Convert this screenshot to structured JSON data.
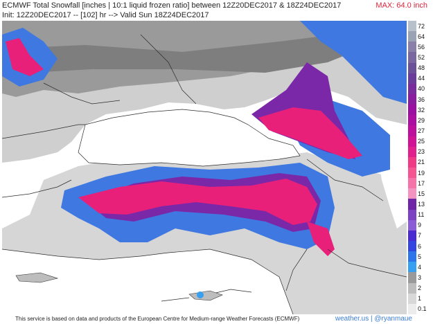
{
  "header": {
    "line1": "ECMWF Total Snowfall [inches | 10:1 liquid frozen ratio] between 12Z20DEC2017 & 18Z24DEC2017",
    "line2": "Init: 12Z20DEC2017 -- [102] hr --> Valid Sun 18Z24DEC2017",
    "max_label": "MAX: 64.0 inch"
  },
  "legend": {
    "labels": [
      "72",
      "64",
      "56",
      "52",
      "48",
      "44",
      "40",
      "36",
      "32",
      "29",
      "27",
      "25",
      "23",
      "21",
      "19",
      "17",
      "15",
      "13",
      "11",
      "9",
      "7",
      "6",
      "5",
      "4",
      "3",
      "2",
      "1",
      "0.1"
    ],
    "colors": [
      "#b8c0cc",
      "#9aa3b3",
      "#8a7fa8",
      "#7a67a0",
      "#6b5298",
      "#6a3d9a",
      "#7a2b9c",
      "#8a1d9f",
      "#9b10a1",
      "#ac0ea0",
      "#bd0f9c",
      "#cf1394",
      "#e0208d",
      "#ef3a86",
      "#f55590",
      "#f573a8",
      "#f293c0",
      "#6e26a6",
      "#7d42c2",
      "#8a5cd6",
      "#4a2bd1",
      "#3546e0",
      "#2f74ea",
      "#38a0f0",
      "#9a9a9a",
      "#bdbdbd",
      "#d8d8d8",
      "#ececec"
    ]
  },
  "footer": {
    "source": "This service is based on data and products of the European Centre for Medium-range Weather Forecasts (ECMWF)",
    "brand": "weather.us | @ryanmaue"
  },
  "colors": {
    "sea": "#ffffff",
    "light_snow": "#c8c8c8",
    "mid_snow": "#8f8f8f",
    "blue_snow": "#3f78e0",
    "purple_snow": "#7b28a8",
    "pink_snow": "#e8207a",
    "border": "#2a2a2a"
  }
}
